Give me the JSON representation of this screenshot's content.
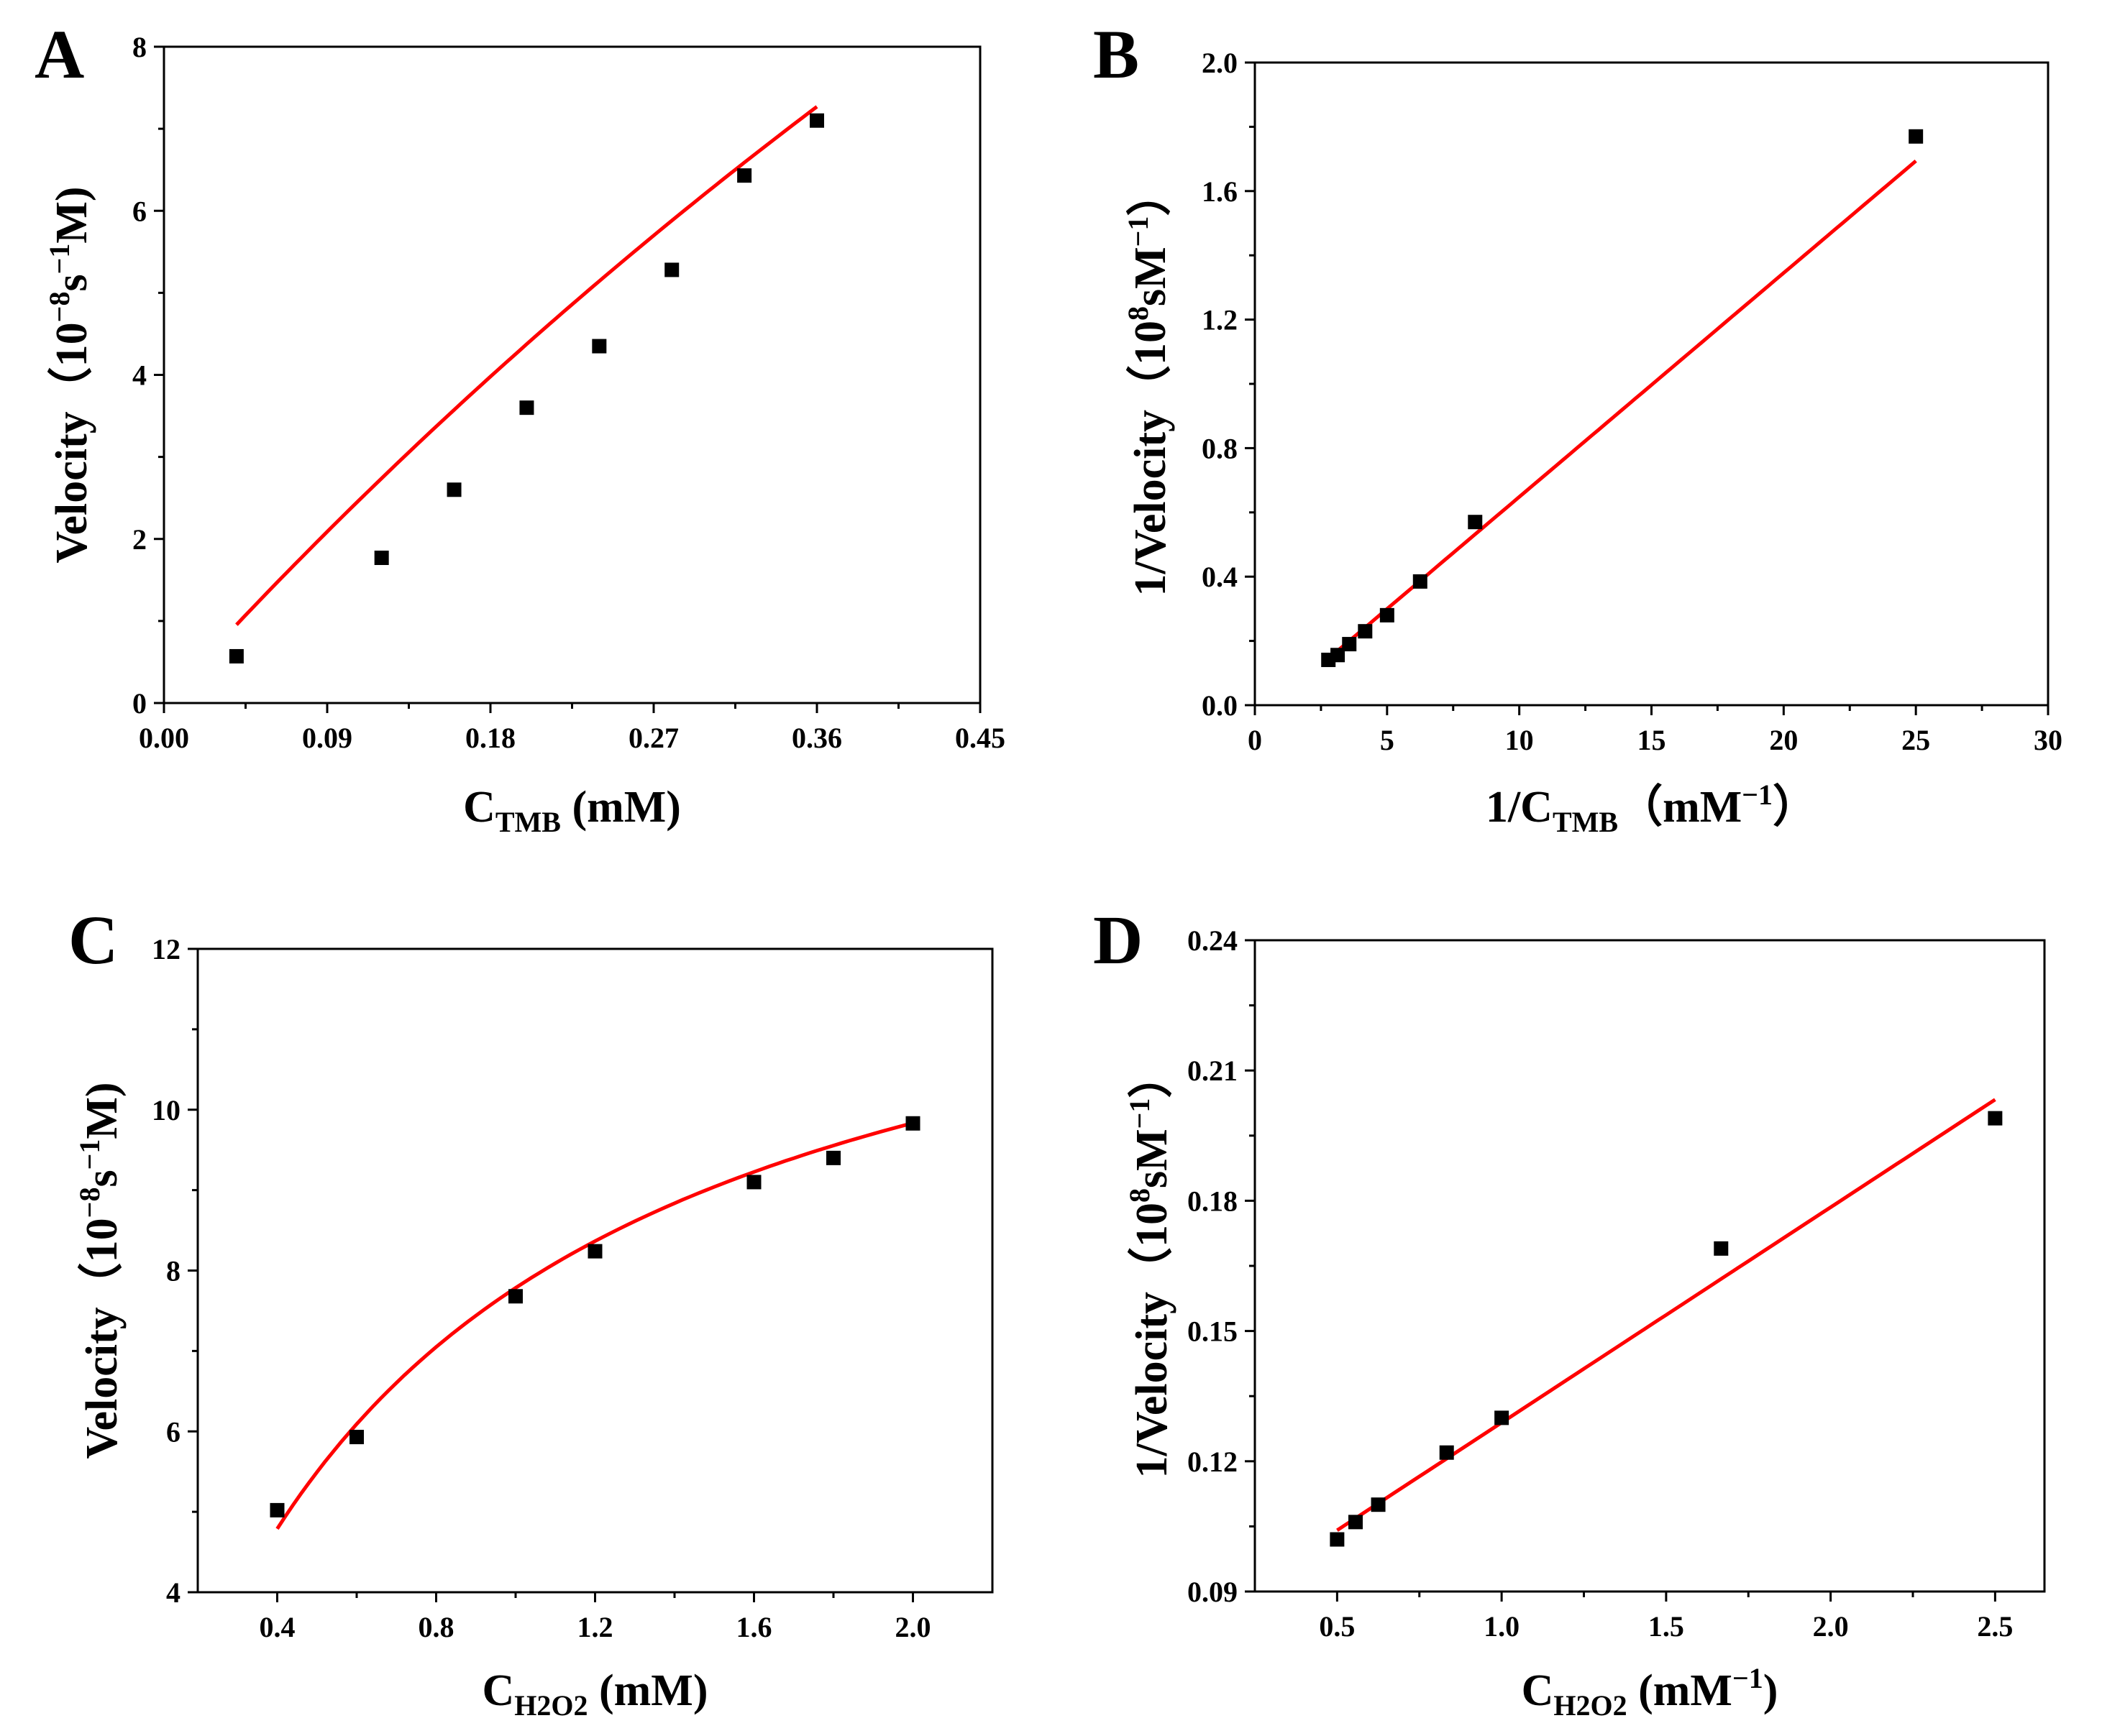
{
  "chart_data": [
    {
      "panel": "A",
      "type": "scatter",
      "title": "",
      "xlabel": {
        "main": "C",
        "sub": "TMB",
        "rest": " (mM)"
      },
      "ylabel": {
        "main": "Velocity（10",
        "sup": "−8",
        "mid": "s",
        "sup2": "−1",
        "rest": "M)"
      },
      "xlim": [
        0,
        0.45
      ],
      "ylim": [
        0,
        8
      ],
      "xticks": [
        0.0,
        0.09,
        0.18,
        0.27,
        0.36,
        0.45
      ],
      "xtick_labels": [
        "0.00",
        "0.09",
        "0.18",
        "0.27",
        "0.36",
        "0.45"
      ],
      "yticks": [
        0,
        2,
        4,
        6,
        8
      ],
      "ytick_labels": [
        "0",
        "2",
        "4",
        "6",
        "8"
      ],
      "series": [
        {
          "name": "data",
          "x": [
            0.04,
            0.12,
            0.16,
            0.2,
            0.24,
            0.28,
            0.32,
            0.36
          ],
          "y": [
            0.57,
            1.77,
            2.6,
            3.6,
            4.35,
            5.28,
            6.43,
            7.1
          ]
        }
      ],
      "fit": {
        "kind": "michaelis-menten",
        "vmax": 42,
        "km": 1.72,
        "xrange": [
          0.04,
          0.36
        ],
        "color": "#ff0000"
      }
    },
    {
      "panel": "B",
      "type": "scatter",
      "title": "",
      "xlabel": {
        "main": "1/C",
        "sub": "TMB",
        "rest": "（mM",
        "sup": "−1",
        "end": "）"
      },
      "ylabel": {
        "main": "1/Velocity（10",
        "sup": "8",
        "rest": "sM",
        "sup2": "−1",
        "end": "）"
      },
      "xlim": [
        0,
        30
      ],
      "ylim": [
        0,
        2.0
      ],
      "xticks": [
        0,
        5,
        10,
        15,
        20,
        25,
        30
      ],
      "xtick_labels": [
        "0",
        "5",
        "10",
        "15",
        "20",
        "25",
        "30"
      ],
      "yticks": [
        0,
        0.4,
        0.8,
        1.2,
        1.6,
        2.0
      ],
      "ytick_labels": [
        "0.0",
        "0.4",
        "0.8",
        "1.2",
        "1.6",
        "2.0"
      ],
      "series": [
        {
          "name": "data",
          "x": [
            2.78,
            3.13,
            3.57,
            4.17,
            5.0,
            6.25,
            8.33,
            25.0
          ],
          "y": [
            0.141,
            0.156,
            0.19,
            0.23,
            0.28,
            0.385,
            0.57,
            1.77
          ]
        }
      ],
      "fit": {
        "kind": "linear",
        "slope": 0.0697,
        "intercept": -0.0488,
        "xrange": [
          2.7,
          25.0
        ],
        "color": "#ff0000"
      }
    },
    {
      "panel": "C",
      "type": "scatter",
      "title": "",
      "xlabel": {
        "main": "C",
        "sub": "H2O2",
        "rest": " (mM)"
      },
      "ylabel": {
        "main": "Velocity（10",
        "sup": "−8",
        "mid": "s",
        "sup2": "−1",
        "rest": "M)"
      },
      "xlim": [
        0.2,
        2.2
      ],
      "ylim": [
        4,
        12
      ],
      "xticks": [
        0.4,
        0.8,
        1.2,
        1.6,
        2.0
      ],
      "xtick_labels": [
        "0.4",
        "0.8",
        "1.2",
        "1.6",
        "2.0"
      ],
      "yticks": [
        4,
        6,
        8,
        10,
        12
      ],
      "ytick_labels": [
        "4",
        "6",
        "8",
        "10",
        "12"
      ],
      "series": [
        {
          "name": "data",
          "x": [
            0.4,
            0.6,
            1.0,
            1.2,
            1.6,
            1.8,
            2.0
          ],
          "y": [
            5.02,
            5.93,
            7.68,
            8.24,
            9.1,
            9.4,
            9.83
          ]
        }
      ],
      "fit": {
        "kind": "michaelis-menten",
        "vmax": 13.35,
        "km": 0.715,
        "xrange": [
          0.4,
          2.0
        ],
        "color": "#ff0000"
      }
    },
    {
      "panel": "D",
      "type": "scatter",
      "title": "",
      "xlabel": {
        "main": "C",
        "sub": "H2O2",
        "rest": " (mM",
        "sup": "−1",
        "end": ")"
      },
      "ylabel": {
        "main": "1/Velocity（10",
        "sup": "8",
        "rest": "sM",
        "sup2": "−1",
        "end": "）"
      },
      "xlim": [
        0.25,
        2.65
      ],
      "ylim": [
        0.09,
        0.24
      ],
      "xticks": [
        0.5,
        1.0,
        1.5,
        2.0,
        2.5
      ],
      "xtick_labels": [
        "0.5",
        "1.0",
        "1.5",
        "2.0",
        "2.5"
      ],
      "yticks": [
        0.09,
        0.12,
        0.15,
        0.18,
        0.21,
        0.24
      ],
      "ytick_labels": [
        "0.09",
        "0.12",
        "0.15",
        "0.18",
        "0.21",
        "0.24"
      ],
      "series": [
        {
          "name": "data",
          "x": [
            0.5,
            0.556,
            0.625,
            0.833,
            1.0,
            1.667,
            2.5
          ],
          "y": [
            0.102,
            0.106,
            0.11,
            0.122,
            0.13,
            0.169,
            0.199
          ]
        }
      ],
      "fit": {
        "kind": "linear",
        "slope": 0.0496,
        "intercept": 0.0793,
        "xrange": [
          0.5,
          2.5
        ],
        "color": "#ff0000"
      }
    }
  ]
}
